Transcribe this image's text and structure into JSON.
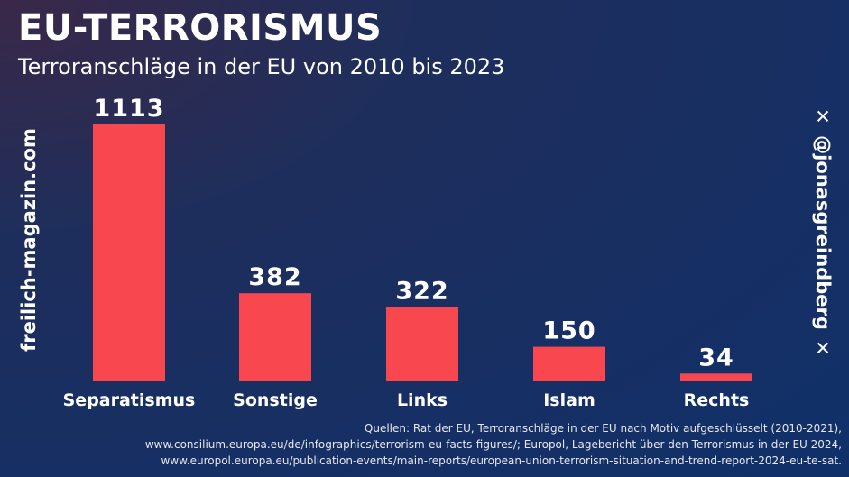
{
  "header": {
    "title": "EU-TERRORISMUS",
    "subtitle": "Terroranschläge in der EU von 2010 bis 2023"
  },
  "watermark": {
    "site": "freilich-magazin.com",
    "handle": "@jonasgreindberg",
    "icon": "x-logo-icon"
  },
  "colors": {
    "bar": "#f9474f",
    "text": "#ffffff"
  },
  "chart_data": {
    "type": "bar",
    "title": "Terroranschläge in der EU von 2010 bis 2023",
    "categories": [
      "Separatismus",
      "Sonstige",
      "Links",
      "Islam",
      "Rechts"
    ],
    "values": [
      1113,
      382,
      322,
      150,
      34
    ],
    "xlabel": "",
    "ylabel": "",
    "ylim": [
      0,
      1113
    ],
    "grid": false,
    "legend": "none"
  },
  "sources": {
    "line1": "Quellen: Rat der EU, Terroranschläge in der EU nach Motiv aufgeschlüsselt (2010-2021),",
    "line2": "www.consilium.europa.eu/de/infographics/terrorism-eu-facts-figures/; Europol, Lagebericht über den Terrorismus in der EU 2024,",
    "line3": "www.europol.europa.eu/publication-events/main-reports/european-union-terrorism-situation-and-trend-report-2024-eu-te-sat."
  }
}
